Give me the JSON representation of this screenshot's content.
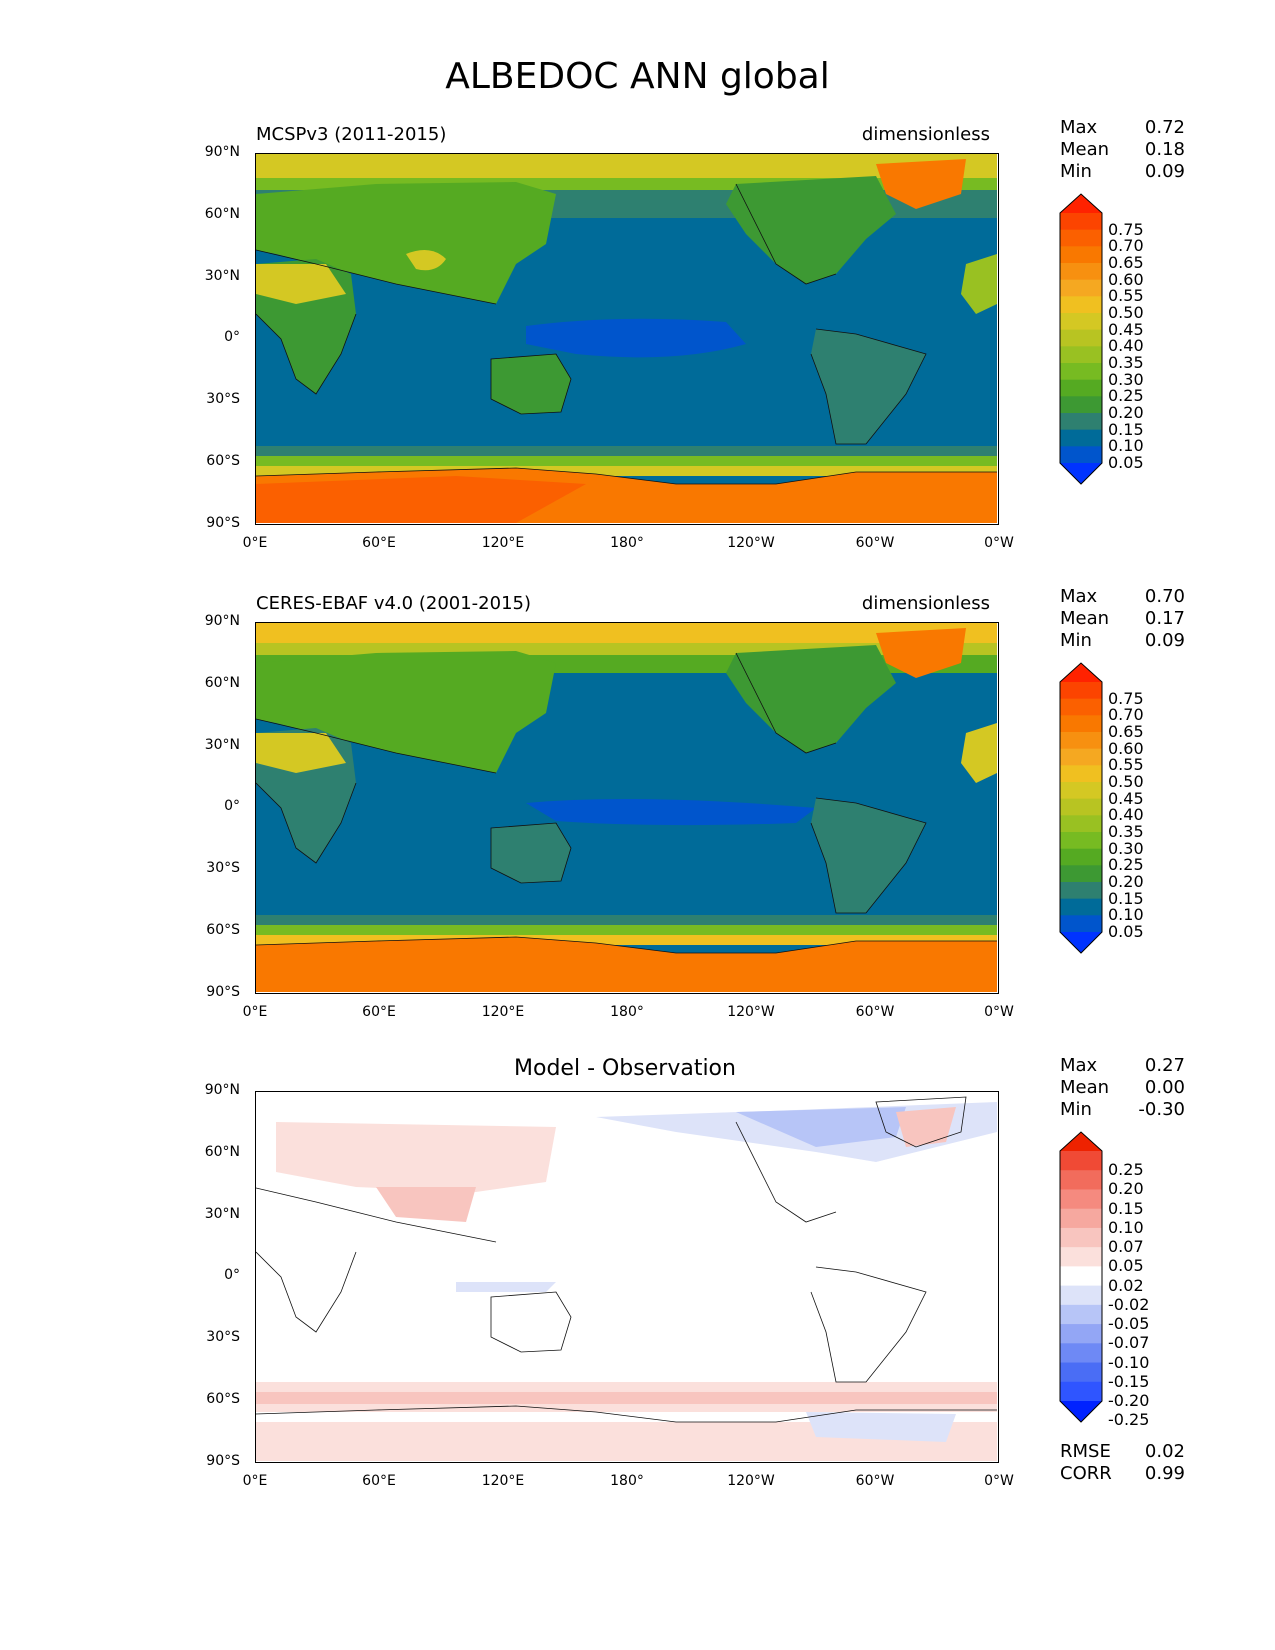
{
  "title": "ALBEDOC ANN global",
  "lat_ticks": [
    "90°N",
    "60°N",
    "30°N",
    "0°",
    "30°S",
    "60°S",
    "90°S"
  ],
  "lon_ticks": [
    "0°E",
    "60°E",
    "120°E",
    "180°",
    "120°W",
    "60°W",
    "0°W"
  ],
  "colors": {
    "field": [
      "#0033ff",
      "#0055cc",
      "#006b99",
      "#2e8070",
      "#3d9933",
      "#55aa22",
      "#77bb22",
      "#99c122",
      "#b8c422",
      "#d4c823",
      "#f0c020",
      "#f5a821",
      "#f79010",
      "#f97800",
      "#fb6000",
      "#fc4400",
      "#ff2200"
    ],
    "diff": [
      "#0022ff",
      "#2f55ff",
      "#4a6df5",
      "#6e89f5",
      "#93a6f5",
      "#b7c5f7",
      "#dde3f9",
      "#ffffff",
      "#fbe0dc",
      "#f8c5bf",
      "#f6a89f",
      "#f58a7f",
      "#f26c5c",
      "#f04a35",
      "#ee2200"
    ]
  },
  "panels": [
    {
      "id": "model",
      "title": "MCSPv3 (2011-2015)",
      "units": "dimensionless",
      "stats": {
        "Max": "0.72",
        "Mean": "0.18",
        "Min": "0.09"
      },
      "colorbar": [
        "0.75",
        "0.70",
        "0.65",
        "0.60",
        "0.55",
        "0.50",
        "0.45",
        "0.40",
        "0.35",
        "0.30",
        "0.25",
        "0.20",
        "0.15",
        "0.10",
        "0.05"
      ],
      "palette": "field"
    },
    {
      "id": "obs",
      "title": "CERES-EBAF v4.0 (2001-2015)",
      "units": "dimensionless",
      "stats": {
        "Max": "0.70",
        "Mean": "0.17",
        "Min": "0.09"
      },
      "colorbar": [
        "0.75",
        "0.70",
        "0.65",
        "0.60",
        "0.55",
        "0.50",
        "0.45",
        "0.40",
        "0.35",
        "0.30",
        "0.25",
        "0.20",
        "0.15",
        "0.10",
        "0.05"
      ],
      "palette": "field"
    },
    {
      "id": "diff",
      "title": "Model - Observation",
      "units": "",
      "stats": {
        "Max": "0.27",
        "Mean": "0.00",
        "Min": "-0.30"
      },
      "colorbar": [
        "0.25",
        "0.20",
        "0.15",
        "0.10",
        "0.07",
        "0.05",
        "0.02",
        "-0.02",
        "-0.05",
        "-0.07",
        "-0.10",
        "-0.15",
        "-0.20",
        "-0.25"
      ],
      "palette": "diff",
      "extra_stats": {
        "RMSE": "0.02",
        "CORR": "0.99"
      }
    }
  ]
}
